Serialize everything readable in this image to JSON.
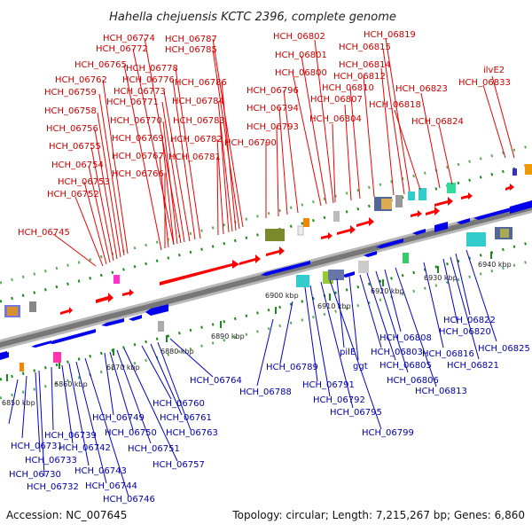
{
  "title": "Hahella chejuensis KCTC 2396, complete genome",
  "footer": {
    "accession": "Accession: NC_007645",
    "topology": "Topology: circular; Length: 7,215,267 bp; Genes: 6,860"
  },
  "ticks": [
    "6850 kbp",
    "6860 kbp",
    "6870 kbp",
    "6880 kbp",
    "6890 kbp",
    "6900 kbp",
    "6910 kbp",
    "6920 kbp",
    "6930 kbp",
    "6940 kbp"
  ],
  "top_labels": [
    "HCH_06745",
    "HCH_06752",
    "HCH_06753",
    "HCH_06754",
    "HCH_06755",
    "HCH_06756",
    "HCH_06758",
    "HCH_06759",
    "HCH_06762",
    "HCH_06765",
    "HCH_06772",
    "HCH_06774",
    "HCH_06766",
    "HCH_06767",
    "HCH_06769",
    "HCH_06770",
    "HCH_06771",
    "HCH_06773",
    "HCH_06776",
    "HCH_06778",
    "HCH_06781",
    "HCH_06782",
    "HCH_06783",
    "HCH_06784",
    "HCH_06786",
    "HCH_06785",
    "HCH_06787",
    "HCH_06790",
    "HCH_06793",
    "HCH_06794",
    "HCH_06796",
    "HCH_06800",
    "HCH_06801",
    "HCH_06802",
    "HCH_06804",
    "HCH_06807",
    "HCH_06810",
    "HCH_06812",
    "HCH_06814",
    "HCH_06815",
    "HCH_06819",
    "HCH_06818",
    "HCH_06823",
    "HCH_06824",
    "HCH_06833",
    "ilvE2"
  ],
  "bottom_labels": [
    "HCH_06730",
    "HCH_06731",
    "HCH_06732",
    "HCH_06733",
    "HCH_06739",
    "HCH_06742",
    "HCH_06743",
    "HCH_06744",
    "HCH_06746",
    "HCH_06749",
    "HCH_06750",
    "HCH_06751",
    "HCH_06757",
    "HCH_06760",
    "HCH_06761",
    "HCH_06763",
    "HCH_06764",
    "HCH_06788",
    "HCH_06789",
    "HCH_06791",
    "HCH_06792",
    "HCH_06795",
    "HCH_06799",
    "pilE",
    "ggt",
    "HCH_06803",
    "HCH_06805",
    "HCH_06806",
    "HCH_06808",
    "HCH_06813",
    "HCH_06816",
    "HCH_06820",
    "HCH_06821",
    "HCH_06822",
    "HCH_06825"
  ],
  "colors": {
    "forward": "#ff0000",
    "reverse": "#0000ee",
    "top_label": "#cc0000",
    "bottom_label": "#0000aa"
  }
}
